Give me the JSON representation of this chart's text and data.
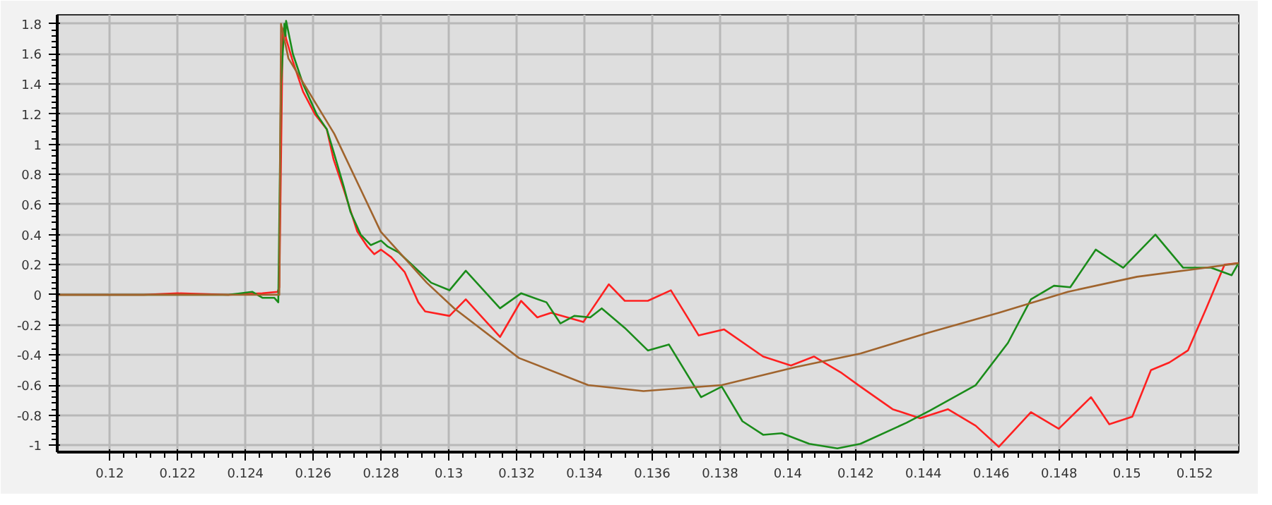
{
  "chart_data": {
    "type": "line",
    "xlim": [
      0.11845,
      0.1533
    ],
    "ylim": [
      -1.045,
      1.86
    ],
    "xticks": [
      0.12,
      0.122,
      0.124,
      0.126,
      0.128,
      0.13,
      0.132,
      0.134,
      0.136,
      0.138,
      0.14,
      0.142,
      0.144,
      0.146,
      0.148,
      0.15,
      0.152
    ],
    "yticks": [
      -1,
      -0.8,
      -0.6,
      -0.4,
      -0.2,
      0,
      0.2,
      0.4,
      0.6,
      0.8,
      1,
      1.2,
      1.4,
      1.6,
      1.8
    ],
    "grid": true,
    "line_style": "solid",
    "marker": "none",
    "series": [
      {
        "color": "#ff2020",
        "x": [
          0.11845,
          0.121,
          0.122,
          0.1235,
          0.1245,
          0.12495,
          0.125,
          0.1251,
          0.12515,
          0.1252,
          0.1254,
          0.1257,
          0.12605,
          0.1264,
          0.1266,
          0.1269,
          0.1273,
          0.1276,
          0.1278,
          0.128,
          0.1283,
          0.1287,
          0.1291,
          0.1293,
          0.13002,
          0.1305,
          0.13151,
          0.13213,
          0.13261,
          0.13302,
          0.13397,
          0.13472,
          0.13519,
          0.13587,
          0.13655,
          0.13737,
          0.13812,
          0.13927,
          0.14009,
          0.14077,
          0.14159,
          0.14214,
          0.14309,
          0.1439,
          0.14472,
          0.14554,
          0.14622,
          0.14717,
          0.14799,
          0.14894,
          0.14948,
          0.15016,
          0.15071,
          0.15125,
          0.1518,
          0.15234,
          0.15288,
          0.15329
        ],
        "values": [
          0,
          0,
          0.01,
          0,
          0.01,
          0.02,
          0.05,
          1.75,
          1.78,
          1.7,
          1.55,
          1.35,
          1.2,
          1.1,
          0.9,
          0.7,
          0.42,
          0.32,
          0.27,
          0.3,
          0.25,
          0.15,
          -0.05,
          -0.11,
          -0.14,
          -0.03,
          -0.28,
          -0.04,
          -0.15,
          -0.12,
          -0.18,
          0.07,
          -0.04,
          -0.04,
          0.03,
          -0.27,
          -0.23,
          -0.41,
          -0.47,
          -0.41,
          -0.52,
          -0.61,
          -0.76,
          -0.82,
          -0.76,
          -0.87,
          -1.01,
          -0.78,
          -0.89,
          -0.68,
          -0.86,
          -0.81,
          -0.5,
          -0.45,
          -0.37,
          -0.09,
          0.2,
          0.21
        ]
      },
      {
        "color": "#1a8c1a",
        "x": [
          0.11845,
          0.1235,
          0.1242,
          0.1245,
          0.12485,
          0.12497,
          0.12505,
          0.12515,
          0.12518,
          0.1252,
          0.1254,
          0.1257,
          0.1261,
          0.1264,
          0.1266,
          0.1269,
          0.1271,
          0.1274,
          0.1277,
          0.128,
          0.1282,
          0.12853,
          0.12948,
          0.13002,
          0.1305,
          0.13151,
          0.13213,
          0.13288,
          0.13329,
          0.1337,
          0.13417,
          0.13451,
          0.13519,
          0.13587,
          0.13649,
          0.13744,
          0.13805,
          0.13866,
          0.13927,
          0.13982,
          0.14063,
          0.14146,
          0.14214,
          0.1435,
          0.14418,
          0.14554,
          0.14649,
          0.14717,
          0.14785,
          0.14833,
          0.14908,
          0.14948,
          0.14989,
          0.15084,
          0.15166,
          0.15248,
          0.15309,
          0.15329
        ],
        "values": [
          0,
          0,
          0.02,
          -0.02,
          -0.02,
          -0.05,
          1.4,
          1.8,
          1.72,
          1.82,
          1.6,
          1.4,
          1.2,
          1.1,
          0.95,
          0.72,
          0.55,
          0.4,
          0.33,
          0.36,
          0.32,
          0.28,
          0.08,
          0.03,
          0.16,
          -0.09,
          0.01,
          -0.05,
          -0.19,
          -0.14,
          -0.15,
          -0.09,
          -0.22,
          -0.37,
          -0.33,
          -0.68,
          -0.61,
          -0.84,
          -0.93,
          -0.92,
          -0.99,
          -1.02,
          -0.99,
          -0.85,
          -0.77,
          -0.6,
          -0.32,
          -0.03,
          0.06,
          0.05,
          0.3,
          0.24,
          0.18,
          0.4,
          0.18,
          0.18,
          0.13,
          0.21
        ]
      },
      {
        "color": "#a0642d",
        "x": [
          0.11845,
          0.125,
          0.12505,
          0.12527,
          0.12662,
          0.12799,
          0.12935,
          0.13016,
          0.13207,
          0.13411,
          0.13574,
          0.13805,
          0.14023,
          0.14214,
          0.14418,
          0.14622,
          0.14826,
          0.1503,
          0.15234,
          0.1533
        ],
        "values": [
          0,
          0,
          1.8,
          1.57,
          1.07,
          0.42,
          0.08,
          -0.09,
          -0.42,
          -0.6,
          -0.64,
          -0.6,
          -0.48,
          -0.39,
          -0.25,
          -0.12,
          0.02,
          0.12,
          0.18,
          0.21
        ]
      }
    ]
  }
}
